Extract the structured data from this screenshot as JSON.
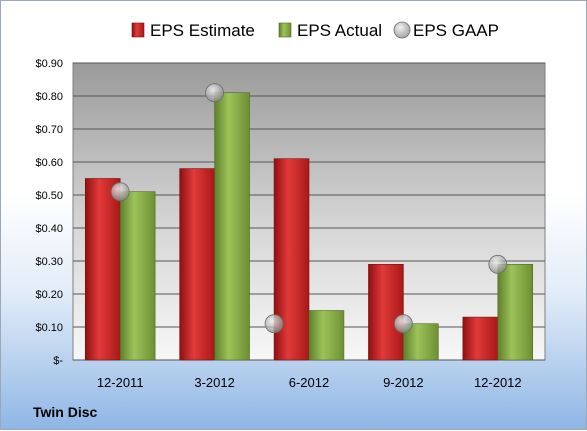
{
  "chart_data": {
    "type": "bar",
    "categories": [
      "12-2011",
      "3-2012",
      "6-2012",
      "9-2012",
      "12-2012"
    ],
    "series": [
      {
        "name": "EPS Estimate",
        "type": "bar",
        "color": "#cc1f1f",
        "values": [
          0.55,
          0.58,
          0.61,
          0.29,
          0.13
        ]
      },
      {
        "name": "EPS Actual",
        "type": "bar",
        "color": "#86a944",
        "values": [
          0.51,
          0.81,
          0.15,
          0.11,
          0.29
        ]
      },
      {
        "name": "EPS GAAP",
        "type": "marker",
        "color": "#a8a8a8",
        "values": [
          0.51,
          0.81,
          0.11,
          0.11,
          0.29
        ]
      }
    ],
    "ylim": [
      0,
      0.9
    ],
    "yticks": [
      0,
      0.1,
      0.2,
      0.3,
      0.4,
      0.5,
      0.6,
      0.7,
      0.8,
      0.9
    ],
    "ytick_labels": [
      "$-",
      "$0.10",
      "$0.20",
      "$0.30",
      "$0.40",
      "$0.50",
      "$0.60",
      "$0.70",
      "$0.80",
      "$0.90"
    ],
    "grid": true,
    "legend_position": "top",
    "footer": "Twin Disc"
  }
}
